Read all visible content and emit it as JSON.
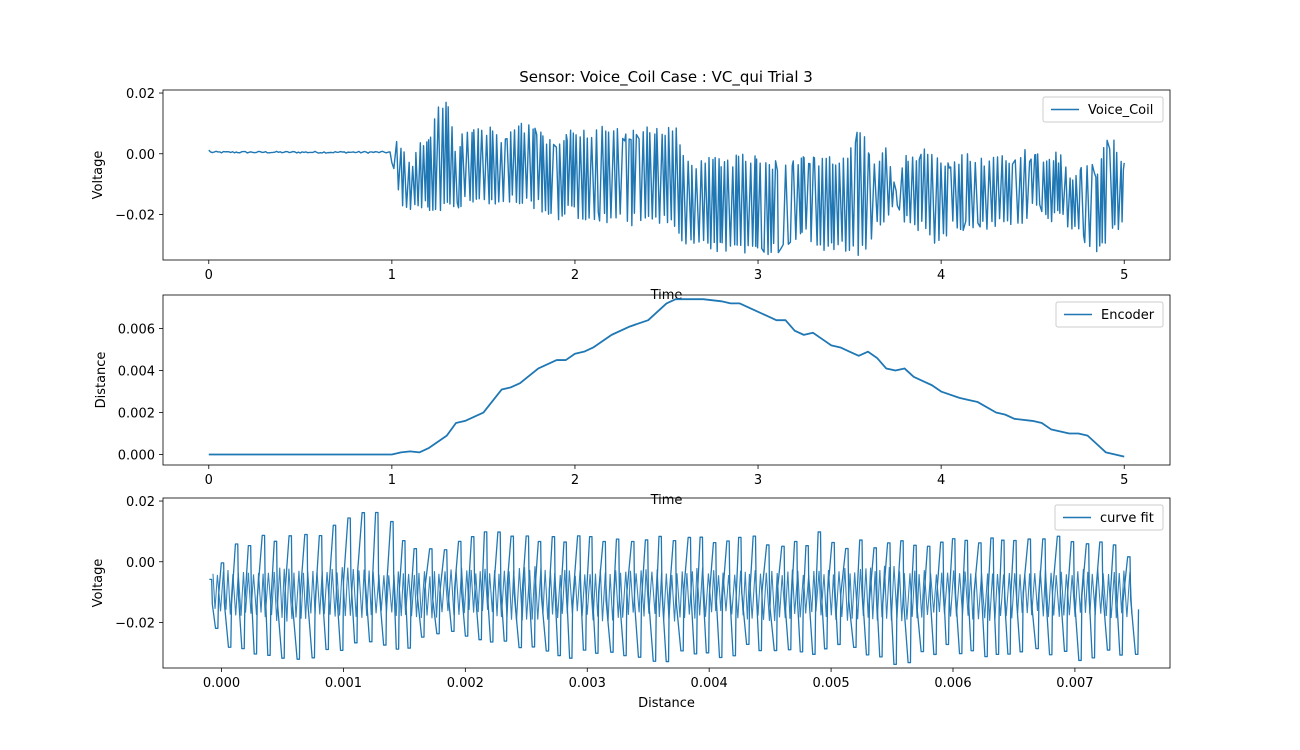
{
  "figure_title": "Sensor: Voice_Coil Case : VC_qui Trial 3",
  "colors": {
    "line": "#1f77b4",
    "axes": "#000000",
    "legend_border": "#cccccc"
  },
  "chart_data": [
    {
      "type": "line",
      "title": "Sensor: Voice_Coil Case : VC_qui Trial 3",
      "xlabel": "Time",
      "ylabel": "Voltage",
      "xlim": [
        -0.25,
        5.25
      ],
      "ylim": [
        -0.035,
        0.021
      ],
      "xticks": [
        0,
        1,
        2,
        3,
        4,
        5
      ],
      "xtick_labels": [
        "0",
        "1",
        "2",
        "3",
        "4",
        "5"
      ],
      "yticks": [
        -0.02,
        0.0,
        0.02
      ],
      "ytick_labels": [
        "−0.02",
        "0.00",
        "0.02"
      ],
      "legend": "top-right",
      "grid": false,
      "series": [
        {
          "name": "Voice_Coil",
          "x": [
            0.0,
            0.5,
            1.0,
            1.02,
            1.05,
            1.08,
            1.1,
            1.15,
            1.2,
            1.25,
            1.3,
            1.35,
            1.4,
            1.45,
            1.5,
            1.55,
            1.6,
            1.65,
            1.7,
            1.75,
            1.8,
            1.85,
            1.9,
            1.95,
            2.0,
            2.05,
            2.1,
            2.15,
            2.2,
            2.25,
            2.3,
            2.35,
            2.4,
            2.45,
            2.5,
            2.55,
            2.6,
            2.65,
            2.7,
            2.75,
            2.8,
            2.85,
            2.9,
            2.95,
            3.0,
            3.05,
            3.1,
            3.15,
            3.2,
            3.25,
            3.3,
            3.35,
            3.4,
            3.45,
            3.5,
            3.55,
            3.6,
            3.65,
            3.7,
            3.75,
            3.8,
            3.85,
            3.9,
            3.95,
            4.0,
            4.05,
            4.1,
            4.15,
            4.2,
            4.25,
            4.3,
            4.35,
            4.4,
            4.45,
            4.5,
            4.55,
            4.6,
            4.65,
            4.7,
            4.75,
            4.8,
            4.85,
            4.9,
            4.95,
            5.0
          ],
          "y_low": [
            0.0005,
            0.0005,
            0.0005,
            -0.01,
            -0.016,
            -0.02,
            -0.021,
            -0.018,
            -0.019,
            -0.02,
            -0.019,
            -0.02,
            -0.018,
            -0.019,
            -0.018,
            -0.017,
            -0.016,
            -0.017,
            -0.02,
            -0.018,
            -0.019,
            -0.02,
            -0.022,
            -0.021,
            -0.02,
            -0.024,
            -0.022,
            -0.023,
            -0.024,
            -0.023,
            -0.024,
            -0.023,
            -0.024,
            -0.024,
            -0.023,
            -0.026,
            -0.03,
            -0.033,
            -0.031,
            -0.032,
            -0.033,
            -0.034,
            -0.033,
            -0.034,
            -0.032,
            -0.034,
            -0.033,
            -0.032,
            -0.031,
            -0.027,
            -0.03,
            -0.032,
            -0.032,
            -0.031,
            -0.033,
            -0.034,
            -0.031,
            -0.026,
            -0.022,
            -0.02,
            -0.024,
            -0.025,
            -0.026,
            -0.03,
            -0.031,
            -0.025,
            -0.028,
            -0.025,
            -0.026,
            -0.026,
            -0.025,
            -0.024,
            -0.024,
            -0.024,
            -0.02,
            -0.02,
            -0.023,
            -0.022,
            -0.026,
            -0.028,
            -0.03,
            -0.033,
            -0.03,
            -0.027,
            -0.023
          ],
          "y_high": [
            0.0005,
            0.0005,
            0.0005,
            0.005,
            0.005,
            0.003,
            -0.005,
            0.005,
            0.006,
            0.016,
            0.02,
            0.003,
            0.01,
            0.009,
            0.009,
            0.01,
            0.006,
            0.011,
            0.01,
            0.01,
            0.01,
            0.005,
            0.005,
            0.008,
            0.008,
            0.009,
            0.009,
            0.009,
            0.009,
            0.008,
            0.008,
            0.008,
            0.009,
            0.01,
            0.01,
            0.01,
            0.002,
            -0.005,
            0.0,
            0.002,
            -0.001,
            -0.002,
            0.001,
            0.0,
            -0.001,
            -0.001,
            -0.002,
            -0.001,
            -0.001,
            -0.001,
            0.0,
            -0.001,
            0.0,
            0.0,
            0.001,
            0.009,
            0.004,
            -0.001,
            0.005,
            -0.01,
            0.0,
            -0.001,
            0.003,
            0.0,
            -0.001,
            -0.001,
            0.0,
            0.0,
            -0.001,
            0.0,
            -0.001,
            0.0,
            0.0,
            0.002,
            0.0,
            0.0,
            0.0,
            0.001,
            -0.005,
            -0.005,
            -0.003,
            -0.004,
            0.005,
            0.005,
            -0.002
          ]
        }
      ]
    },
    {
      "type": "line",
      "xlabel": "Time",
      "ylabel": "Distance",
      "xlim": [
        -0.25,
        5.25
      ],
      "ylim": [
        -0.0005,
        0.0076
      ],
      "xticks": [
        0,
        1,
        2,
        3,
        4,
        5
      ],
      "xtick_labels": [
        "0",
        "1",
        "2",
        "3",
        "4",
        "5"
      ],
      "yticks": [
        0.0,
        0.002,
        0.004,
        0.006
      ],
      "ytick_labels": [
        "0.000",
        "0.002",
        "0.004",
        "0.006"
      ],
      "legend": "top-right",
      "grid": false,
      "series": [
        {
          "name": "Encoder",
          "x": [
            0.0,
            1.0,
            1.05,
            1.1,
            1.15,
            1.2,
            1.3,
            1.35,
            1.4,
            1.5,
            1.6,
            1.65,
            1.7,
            1.8,
            1.9,
            1.95,
            2.0,
            2.05,
            2.1,
            2.2,
            2.3,
            2.4,
            2.5,
            2.55,
            2.6,
            2.7,
            2.8,
            2.85,
            2.9,
            3.0,
            3.05,
            3.1,
            3.15,
            3.2,
            3.25,
            3.3,
            3.35,
            3.4,
            3.45,
            3.5,
            3.55,
            3.6,
            3.65,
            3.7,
            3.75,
            3.8,
            3.85,
            3.9,
            3.95,
            4.0,
            4.1,
            4.15,
            4.2,
            4.3,
            4.35,
            4.4,
            4.5,
            4.55,
            4.6,
            4.7,
            4.75,
            4.8,
            4.85,
            4.9,
            4.95,
            5.0
          ],
          "y": [
            0.0,
            0.0,
            0.0001,
            0.00015,
            0.0001,
            0.0003,
            0.0009,
            0.0015,
            0.0016,
            0.002,
            0.0031,
            0.0032,
            0.0034,
            0.0041,
            0.0045,
            0.0045,
            0.0048,
            0.0049,
            0.0051,
            0.0057,
            0.0061,
            0.0064,
            0.0072,
            0.0074,
            0.0074,
            0.0074,
            0.0073,
            0.0072,
            0.0072,
            0.0068,
            0.0066,
            0.0064,
            0.0064,
            0.0059,
            0.0057,
            0.0058,
            0.0055,
            0.0052,
            0.0051,
            0.0049,
            0.0047,
            0.0049,
            0.0046,
            0.0041,
            0.004,
            0.0041,
            0.0037,
            0.0035,
            0.0033,
            0.003,
            0.0027,
            0.0026,
            0.0025,
            0.002,
            0.0019,
            0.0017,
            0.0016,
            0.0015,
            0.0012,
            0.001,
            0.001,
            0.0009,
            0.0005,
            0.0001,
            0.0,
            -0.0001
          ]
        }
      ]
    },
    {
      "type": "line",
      "xlabel": "Distance",
      "ylabel": "Voltage",
      "xlim": [
        -0.00048,
        0.00778
      ],
      "ylim": [
        -0.035,
        0.021
      ],
      "xticks": [
        0.0,
        0.001,
        0.002,
        0.003,
        0.004,
        0.005,
        0.006,
        0.007
      ],
      "xtick_labels": [
        "0.000",
        "0.001",
        "0.002",
        "0.003",
        "0.004",
        "0.005",
        "0.006",
        "0.007"
      ],
      "yticks": [
        -0.02,
        0.0,
        0.02
      ],
      "ytick_labels": [
        "−0.02",
        "0.00",
        "0.02"
      ],
      "legend": "top-right",
      "grid": false,
      "series": [
        {
          "name": "curve fit",
          "x_range": [
            -0.0001,
            0.0075
          ],
          "outer_low": [
            -0.023,
            -0.03,
            -0.031,
            -0.032,
            -0.033,
            -0.03,
            -0.028,
            -0.029,
            -0.03,
            -0.026,
            -0.025,
            -0.028,
            -0.029,
            -0.028,
            -0.031,
            -0.032,
            -0.03,
            -0.032,
            -0.033,
            -0.033,
            -0.031,
            -0.032,
            -0.03,
            -0.03,
            -0.032,
            -0.03,
            -0.029,
            -0.033,
            -0.034,
            -0.033,
            -0.03,
            -0.031,
            -0.032,
            -0.033,
            -0.031,
            -0.032,
            -0.033,
            -0.03,
            -0.033
          ],
          "outer_high": [
            -0.003,
            0.006,
            0.009,
            0.01,
            0.011,
            0.013,
            0.019,
            0.02,
            0.008,
            0.006,
            0.009,
            0.01,
            0.012,
            0.011,
            0.01,
            0.01,
            0.008,
            0.009,
            0.009,
            0.01,
            0.011,
            0.008,
            0.009,
            0.008,
            0.008,
            0.01,
            0.008,
            0.009,
            0.007,
            0.008,
            0.01,
            0.009,
            0.008,
            0.01,
            0.01,
            0.009,
            0.008,
            0.01,
            -0.001
          ],
          "inner_low": [
            -0.013,
            -0.017,
            -0.016,
            -0.018,
            -0.017,
            -0.016,
            -0.017,
            -0.016,
            -0.017,
            -0.017,
            -0.016,
            -0.015,
            -0.017,
            -0.018,
            -0.017,
            -0.016,
            -0.018,
            -0.017,
            -0.016,
            -0.018,
            -0.017,
            -0.016,
            -0.017,
            -0.018,
            -0.017,
            -0.016,
            -0.018,
            -0.017,
            -0.018,
            -0.017,
            -0.016,
            -0.017,
            -0.018,
            -0.017,
            -0.016,
            -0.017,
            -0.016,
            -0.017,
            -0.016
          ],
          "inner_high": [
            -0.006,
            -0.004,
            -0.005,
            -0.003,
            -0.005,
            -0.004,
            -0.003,
            -0.005,
            -0.004,
            -0.005,
            -0.004,
            -0.004,
            -0.005,
            -0.003,
            -0.004,
            -0.005,
            -0.004,
            -0.005,
            -0.004,
            -0.005,
            -0.003,
            -0.005,
            -0.004,
            -0.005,
            -0.004,
            -0.005,
            -0.004,
            -0.004,
            -0.003,
            -0.005,
            -0.004,
            -0.005,
            -0.004,
            -0.005,
            -0.004,
            -0.005,
            -0.004,
            -0.005,
            -0.004
          ]
        }
      ]
    }
  ]
}
